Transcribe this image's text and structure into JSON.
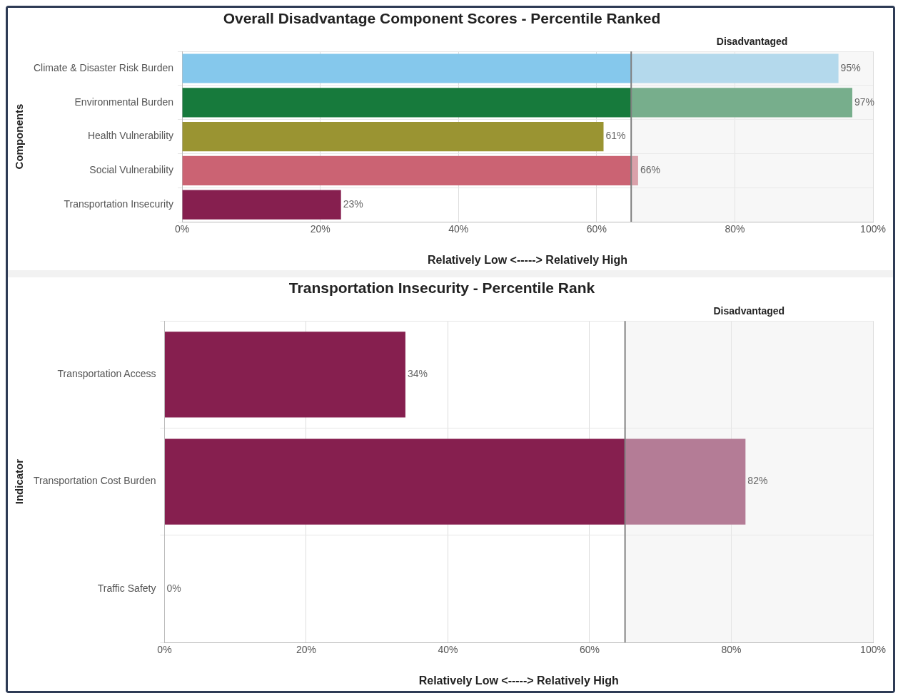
{
  "chart_data": [
    {
      "type": "bar",
      "orientation": "horizontal",
      "title": "Overall Disadvantage Component Scores - Percentile Ranked",
      "xlabel": "Relatively Low <-----> Relatively High",
      "ylabel": "Components",
      "categories": [
        "Climate & Disaster Risk Burden",
        "Environmental Burden",
        "Health Vulnerability",
        "Social Vulnerability",
        "Transportation Insecurity"
      ],
      "values": [
        95,
        97,
        61,
        66,
        23
      ],
      "colors": [
        "#85c8ec",
        "#177a3c",
        "#9a9432",
        "#cb6373",
        "#861f4f"
      ],
      "value_labels": [
        "95%",
        "97%",
        "61%",
        "66%",
        "23%"
      ],
      "xlim": [
        0,
        100
      ],
      "xticks": [
        {
          "value": 0,
          "label": "0%"
        },
        {
          "value": 20,
          "label": "20%"
        },
        {
          "value": 40,
          "label": "40%"
        },
        {
          "value": 60,
          "label": "60%"
        },
        {
          "value": 80,
          "label": "80%"
        },
        {
          "value": 100,
          "label": "100%"
        }
      ],
      "bands": [
        {
          "axis": "x",
          "from": 65,
          "to": 100,
          "label": "Disadvantaged",
          "color": "#eeeeee"
        }
      ],
      "ref_lines": [
        {
          "axis": "x",
          "value": 65,
          "color": "#808080"
        }
      ],
      "grid": true
    },
    {
      "type": "bar",
      "orientation": "horizontal",
      "title": "Transportation Insecurity - Percentile Rank",
      "xlabel": "Relatively Low <-----> Relatively High",
      "ylabel": "Indicator",
      "categories": [
        "Transportation Access",
        "Transportation Cost Burden",
        "Traffic Safety"
      ],
      "values": [
        34,
        82,
        0
      ],
      "colors": [
        "#861f4f",
        "#861f4f",
        "#861f4f"
      ],
      "value_labels": [
        "34%",
        "82%",
        "0%"
      ],
      "xlim": [
        0,
        100
      ],
      "xticks": [
        {
          "value": 0,
          "label": "0%"
        },
        {
          "value": 20,
          "label": "20%"
        },
        {
          "value": 40,
          "label": "40%"
        },
        {
          "value": 60,
          "label": "60%"
        },
        {
          "value": 80,
          "label": "80%"
        },
        {
          "value": 100,
          "label": "100%"
        }
      ],
      "bands": [
        {
          "axis": "x",
          "from": 65,
          "to": 100,
          "label": "Disadvantaged",
          "color": "#eeeeee"
        }
      ],
      "ref_lines": [
        {
          "axis": "x",
          "value": 65,
          "color": "#808080"
        }
      ],
      "grid": true
    }
  ]
}
